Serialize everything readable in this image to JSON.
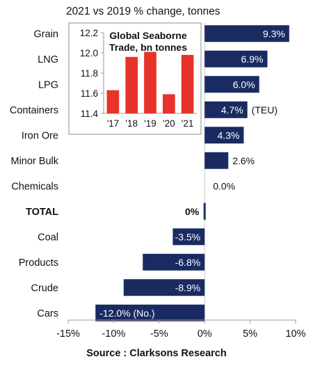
{
  "chart_data": [
    {
      "type": "bar",
      "orientation": "horizontal",
      "subtitle": "2021 vs 2019 % change, tonnes",
      "categories": [
        "Grain",
        "LNG",
        "LPG",
        "Containers",
        "Iron Ore",
        "Minor Bulk",
        "Chemicals",
        "TOTAL",
        "Coal",
        "Products",
        "Crude",
        "Cars"
      ],
      "bold_categories": [
        "TOTAL"
      ],
      "values": [
        9.3,
        6.9,
        6.0,
        4.7,
        4.3,
        2.6,
        0.0,
        0.0,
        -3.5,
        -6.8,
        -8.9,
        -12.0
      ],
      "data_labels": [
        "9.3%",
        "6.9%",
        "6.0%",
        "4.7%",
        "4.3%",
        "2.6%",
        "0.0%",
        "0%",
        "-3.5%",
        "-6.8%",
        "-8.9%",
        "-12.0% (No.)"
      ],
      "label_suffix": {
        "Containers": "(TEU)"
      },
      "xlim": [
        -15,
        10
      ],
      "x_ticks": [
        -15,
        -10,
        -5,
        0,
        5,
        10
      ],
      "x_tick_labels": [
        "-15%",
        "-10%",
        "-5%",
        "0%",
        "5%",
        "10%"
      ],
      "grid": false,
      "color": "#1a2b62",
      "source": "Source : Clarksons Research"
    },
    {
      "type": "bar",
      "title": "Global Seaborne Trade, bn tonnes",
      "categories": [
        "'17",
        "'18",
        "'19",
        "'20",
        "'21"
      ],
      "values": [
        11.63,
        11.96,
        12.01,
        11.59,
        11.98
      ],
      "ylim": [
        11.4,
        12.2
      ],
      "y_ticks": [
        11.4,
        11.6,
        11.8,
        12.0,
        12.2
      ],
      "y_tick_labels": [
        "11.4",
        "11.6",
        "11.8",
        "12.0",
        "12.2"
      ],
      "grid": false,
      "color": "#e8332a"
    }
  ]
}
